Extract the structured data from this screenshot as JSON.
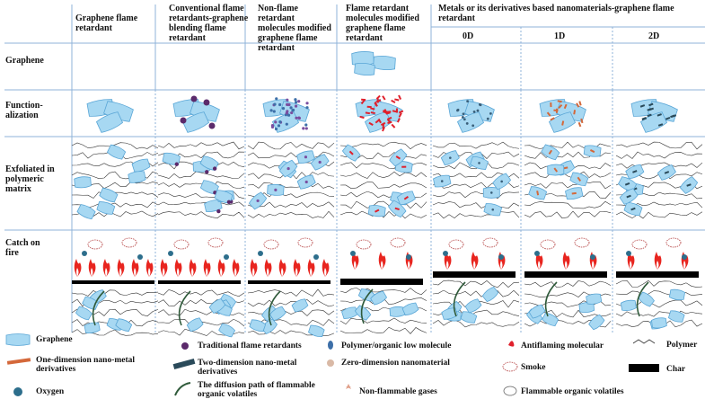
{
  "columns": [
    {
      "id": "graphene-fr",
      "label": "Graphene flame retardant"
    },
    {
      "id": "conventional",
      "label": "Conventional flame retardants-graphene blending flame retardant"
    },
    {
      "id": "non-flame",
      "label": "Non-flame retardant molecules modified graphene flame retardant"
    },
    {
      "id": "fr-molecules",
      "label": "Flame retardant molecules modified graphene flame retardant"
    }
  ],
  "metal_group": {
    "label": "Metals or its derivatives based nanomaterials-graphene flame retardant",
    "subcolumns": [
      "0D",
      "1D",
      "2D"
    ]
  },
  "rows": [
    {
      "id": "graphene",
      "label": "Graphene"
    },
    {
      "id": "functionalization",
      "label": "Function-alization"
    },
    {
      "id": "exfoliated",
      "label": "Exfoliated in polymeric matrix"
    },
    {
      "id": "fire",
      "label": "Catch on fire"
    }
  ],
  "legend": [
    {
      "icon": "graphene-icon",
      "label": "Graphene"
    },
    {
      "icon": "nano-metal-1d-icon",
      "label": "One-dimension nano-metal derivatives"
    },
    {
      "icon": "oxygen-icon",
      "label": "Oxygen"
    },
    {
      "icon": "traditional-fr-icon",
      "label": "Traditional flame retardants"
    },
    {
      "icon": "nano-metal-2d-icon",
      "label": "Two-dimension nano-metal derivatives"
    },
    {
      "icon": "diffusion-path-icon",
      "label": "The diffusion path of flammable organic volatiles"
    },
    {
      "icon": "polymer-low-molecule-icon",
      "label": "Polymer/organic low molecule"
    },
    {
      "icon": "zero-dim-icon",
      "label": "Zero-dimension nanomaterial"
    },
    {
      "icon": "non-flammable-gas-icon",
      "label": "Non-flammable gases"
    },
    {
      "icon": "antiflaming-icon",
      "label": "Antiflaming molecular"
    },
    {
      "icon": "smoke-icon",
      "label": "Smoke"
    },
    {
      "icon": "flammable-volatiles-icon",
      "label": "Flammable organic volatiles"
    },
    {
      "icon": "polymer-icon",
      "label": "Polymer"
    },
    {
      "icon": "char-icon",
      "label": "Char"
    }
  ],
  "colors": {
    "graphene": "#a7d8f2",
    "graphene_edge": "#5aa6d6",
    "char": "#000000",
    "flame": "#e8251f",
    "antiflaming": "#e0202c",
    "nano_1d": "#d4683a",
    "dot": "#5b2a6b",
    "grid": "#8fb3d9"
  }
}
